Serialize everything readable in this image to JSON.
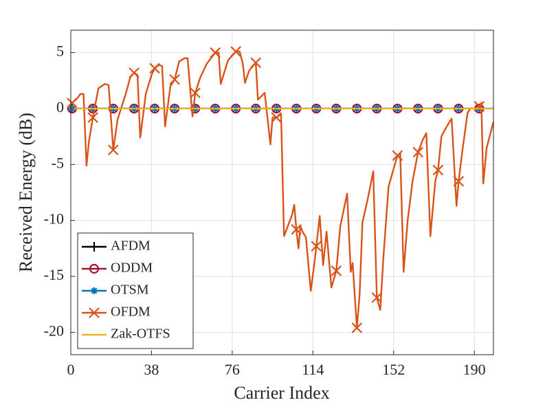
{
  "chart_data": {
    "type": "line",
    "x_label": "Carrier Index",
    "y_label": "Received Energy (dB)",
    "xlim": [
      0,
      199
    ],
    "ylim": [
      -22,
      7
    ],
    "xticks": [
      0,
      38,
      76,
      114,
      152,
      190
    ],
    "yticks": [
      -20,
      -15,
      -10,
      -5,
      0,
      5
    ],
    "grid": true,
    "legend": "lower left",
    "x": [
      0,
      0.6,
      10.4,
      20,
      29.8,
      39.5,
      48.9,
      58.6,
      68,
      77.7,
      87.1,
      96.8,
      106.2,
      115.6,
      125,
      134.7,
      144.1,
      153.8,
      163.5,
      172.9,
      182.6,
      192.3,
      199
    ],
    "series": [
      {
        "name": "AFDM",
        "color": "#000000",
        "marker": "plus",
        "marker_indices": [
          1,
          2,
          3,
          4,
          5,
          6,
          7,
          8,
          9,
          10,
          11,
          12,
          13,
          14,
          15,
          16,
          17,
          18,
          19,
          20,
          21
        ],
        "values": [
          0,
          0,
          0,
          0,
          0,
          0,
          0,
          0,
          0,
          0,
          0,
          0,
          0,
          0,
          0,
          0,
          0,
          0,
          0,
          0,
          0,
          0,
          0
        ]
      },
      {
        "name": "ODDM",
        "color": "#a2142f",
        "marker": "circle",
        "marker_indices": [
          1,
          2,
          3,
          4,
          5,
          6,
          7,
          8,
          9,
          10,
          11,
          12,
          13,
          14,
          15,
          16,
          17,
          18,
          19,
          20,
          21
        ],
        "values": [
          0,
          0,
          0,
          0,
          0,
          0,
          0,
          0,
          0,
          0,
          0,
          0,
          0,
          0,
          0,
          0,
          0,
          0,
          0,
          0,
          0,
          0,
          0
        ]
      },
      {
        "name": "OTSM",
        "color": "#0072bd",
        "marker": "asterisk",
        "marker_indices": [
          1,
          2,
          3,
          4,
          5,
          6,
          7,
          8,
          9,
          10,
          11,
          12,
          13,
          14,
          15,
          16,
          17,
          18,
          19,
          20,
          21
        ],
        "values": [
          0,
          0,
          0,
          0,
          0,
          0,
          0,
          0,
          0,
          0,
          0,
          0,
          0,
          0,
          0,
          0,
          0,
          0,
          0,
          0,
          0,
          0,
          0
        ]
      },
      {
        "name": "OFDM",
        "color": "#d95319",
        "marker": "x",
        "marker_indices": [
          0,
          6,
          10,
          14,
          19,
          24,
          29,
          32,
          36,
          41,
          46,
          51,
          58,
          63,
          68,
          73,
          78,
          83,
          88,
          93,
          98
        ],
        "x": [
          0.6,
          3,
          4.5,
          6,
          7.4,
          8.5,
          10.4,
          13,
          16,
          17.8,
          20,
          22,
          26,
          28,
          29.8,
          31.4,
          32.7,
          35.3,
          38,
          39.5,
          41.5,
          43,
          44.4,
          46.9,
          48.9,
          51,
          53.5,
          55,
          57.3,
          58.6,
          61,
          64,
          68,
          69.6,
          70.6,
          74,
          77.7,
          79.5,
          81,
          82,
          84,
          87.1,
          88.1,
          91.3,
          94,
          95,
          96.8,
          99,
          100.4,
          104.2,
          105.2,
          106.2,
          107.2,
          108.1,
          109.1,
          110.7,
          113,
          114.9,
          115.6,
          117.2,
          118.8,
          120.4,
          122.7,
          125,
          126.9,
          130.1,
          131.8,
          132.7,
          134.7,
          136,
          137.3,
          139.9,
          142.4,
          144.1,
          145.7,
          147.3,
          149.6,
          151.8,
          153.8,
          155.1,
          156.7,
          158.6,
          160.9,
          163.5,
          165.7,
          167.4,
          169.3,
          171.6,
          172.9,
          174.5,
          177,
          179.3,
          181.6,
          182.6,
          184.2,
          186.8,
          188.1,
          190,
          192.3,
          193.3,
          194.2,
          195.8,
          199
        ],
        "values": [
          0.5,
          0.9,
          1.3,
          1.3,
          -5.1,
          -3,
          -0.8,
          1.8,
          2.2,
          2.1,
          -3.7,
          -1.0,
          1.4,
          2.8,
          3.2,
          3,
          -2.6,
          1.3,
          3,
          3.6,
          3.9,
          3.8,
          -1.6,
          2,
          2.6,
          4.2,
          4.5,
          4.5,
          -0.7,
          1.4,
          2.8,
          4,
          5,
          5,
          2.2,
          4.3,
          5.1,
          5.1,
          4,
          2.3,
          3.4,
          4.1,
          0.8,
          1.4,
          -3.2,
          -0.8,
          -0.8,
          -0.5,
          -11.4,
          -9.5,
          -8.6,
          -10.8,
          -12.5,
          -10.5,
          -11.0,
          -11.5,
          -16.3,
          -13.5,
          -12.3,
          -9.6,
          -14.0,
          -11,
          -16,
          -14.5,
          -10.5,
          -7.6,
          -14.6,
          -13.8,
          -19.6,
          -16.6,
          -10.2,
          -8,
          -5.6,
          -16.9,
          -18,
          -13,
          -7,
          -5.5,
          -4.2,
          -4,
          -14.6,
          -10,
          -6.5,
          -3.9,
          -2.8,
          -2.2,
          -11.4,
          -6.5,
          -5.5,
          -2.5,
          -1.6,
          -0.9,
          -8.7,
          -6.5,
          -4,
          -0.4,
          0,
          0,
          0.2,
          0.5,
          -6.7,
          -3.5,
          -1.2
        ]
      },
      {
        "name": "Zak-OTFS",
        "color": "#edb120",
        "marker": "none",
        "marker_indices": [],
        "values": [
          0,
          0,
          0,
          0,
          0,
          0,
          0,
          0,
          0,
          0,
          0,
          0,
          0,
          0,
          0,
          0,
          0,
          0,
          0,
          0,
          0,
          0,
          0
        ]
      }
    ]
  }
}
